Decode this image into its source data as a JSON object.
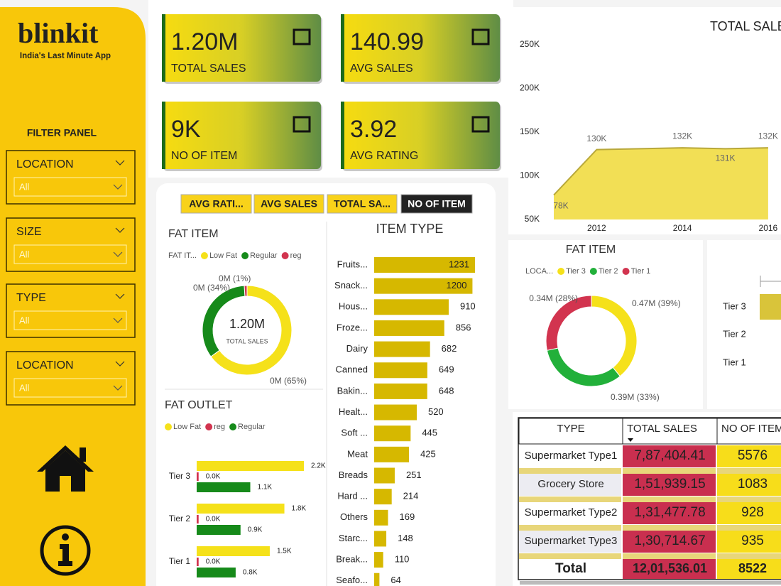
{
  "sidebar": {
    "logo": "blinkit",
    "tagline": "India's Last Minute App",
    "filter_title": "FILTER PANEL",
    "filters": [
      {
        "label": "LOCATION",
        "value": "All"
      },
      {
        "label": "SIZE",
        "value": "All"
      },
      {
        "label": "TYPE",
        "value": "All"
      },
      {
        "label": "LOCATION",
        "value": "All"
      }
    ]
  },
  "kpis": [
    {
      "value": "1.20M",
      "label": "TOTAL SALES"
    },
    {
      "value": "140.99",
      "label": "AVG SALES"
    },
    {
      "value": "9K",
      "label": "NO OF ITEM"
    },
    {
      "value": "3.92",
      "label": "AVG RATING"
    }
  ],
  "tabs": {
    "items": [
      "AVG RATI...",
      "AVG SALES",
      "TOTAL SA...",
      "NO OF ITEM"
    ],
    "active": 3
  },
  "chart_data": [
    {
      "type": "donut",
      "title": "FAT ITEM",
      "legend_title": "FAT IT...",
      "center_value": "1.20M",
      "center_label": "TOTAL SALES",
      "categories": [
        "Low Fat",
        "Regular",
        "reg"
      ],
      "colors": [
        "#f5e11a",
        "#168a1a",
        "#d2344f"
      ],
      "values": [
        65,
        34,
        1
      ],
      "value_labels": [
        "0M (65%)",
        "0M (34%)",
        "0M (1%)"
      ]
    },
    {
      "type": "bar",
      "title": "FAT OUTLET",
      "categories": [
        "Tier 3",
        "Tier 2",
        "Tier 1"
      ],
      "series": [
        {
          "name": "Low Fat",
          "color": "#f5e11a",
          "values": [
            2.2,
            1.8,
            1.5
          ],
          "value_labels": [
            "2.2K",
            "1.8K",
            "1.5K"
          ]
        },
        {
          "name": "reg",
          "color": "#d2344f",
          "values": [
            0.04,
            0.04,
            0.04
          ],
          "value_labels": [
            "0.0K",
            "0.0K",
            "0.0K"
          ]
        },
        {
          "name": "Regular",
          "color": "#168a1a",
          "values": [
            1.1,
            0.9,
            0.8
          ],
          "value_labels": [
            "1.1K",
            "0.9K",
            "0.8K"
          ]
        }
      ]
    },
    {
      "type": "bar",
      "title": "ITEM TYPE",
      "color": "#d6b800",
      "categories": [
        "Fruits...",
        "Snack...",
        "Hous...",
        "Froze...",
        "Dairy",
        "Canned",
        "Bakin...",
        "Healt...",
        "Soft ...",
        "Meat",
        "Breads",
        "Hard ...",
        "Others",
        "Starc...",
        "Break...",
        "Seafo..."
      ],
      "values": [
        1231,
        1200,
        910,
        856,
        682,
        649,
        648,
        520,
        445,
        425,
        251,
        214,
        169,
        148,
        110,
        64
      ]
    },
    {
      "type": "area",
      "title": "TOTAL SALES",
      "color": "#f2df55",
      "grid": false,
      "x": [
        2011,
        2012,
        2014,
        2015,
        2016
      ],
      "values": [
        78000,
        130000,
        132000,
        131000,
        132000
      ],
      "value_labels": [
        "78K",
        "130K",
        "132K",
        "131K",
        "132K"
      ],
      "xlim": [
        2011,
        2016.3
      ],
      "xticks": [
        2012,
        2014,
        2016
      ],
      "ylim": [
        50000,
        250000
      ],
      "yticks": [
        {
          "value": 50000,
          "label": "50K"
        },
        {
          "value": 100000,
          "label": "100K"
        },
        {
          "value": 150000,
          "label": "150K"
        },
        {
          "value": 200000,
          "label": "200K"
        },
        {
          "value": 250000,
          "label": "250K"
        }
      ]
    },
    {
      "type": "donut",
      "title": "FAT ITEM",
      "legend_title": "LOCA...",
      "categories": [
        "Tier 3",
        "Tier 2",
        "Tier 1"
      ],
      "colors": [
        "#f5e11a",
        "#22b03a",
        "#d2344f"
      ],
      "values": [
        0.47,
        0.39,
        0.34
      ],
      "value_labels": [
        "0.47M (39%)",
        "0.39M (33%)",
        "0.34M (28%)"
      ]
    },
    {
      "type": "bar",
      "categories": [
        "Tier 3",
        "Tier 2",
        "Tier 1"
      ]
    }
  ],
  "table": {
    "header": [
      "TYPE",
      "TOTAL SALES",
      "NO OF ITEMS"
    ],
    "rows": [
      [
        "Supermarket Type1",
        "7,87,404.41",
        "5576"
      ],
      [
        "Grocery Store",
        "1,51,939.15",
        "1083"
      ],
      [
        "Supermarket Type2",
        "1,31,477.78",
        "928"
      ],
      [
        "Supermarket Type3",
        "1,30,714.67",
        "935"
      ]
    ],
    "total": [
      "Total",
      "12,01,536.01",
      "8522"
    ]
  }
}
